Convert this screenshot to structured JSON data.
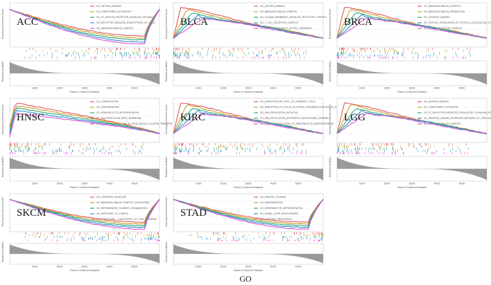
{
  "figure": {
    "footer_label": "GO"
  },
  "axis_text": {
    "es_ylabel": "Running Enrichment Score",
    "rank_ylabel": "Ranked List Metric",
    "rank_xlabel": "Rank in Ordered Dataset"
  },
  "colors": [
    "#e15759",
    "#c9a227",
    "#2aa87a",
    "#2f8fd0",
    "#d957d0"
  ],
  "chart_data": [
    {
      "type": "line",
      "title": "ACC",
      "shape": "valley",
      "ylim": [
        -1,
        0.2
      ],
      "xticks": [
        "10000",
        "20000",
        "30000",
        "40000",
        "50000"
      ],
      "legend": [
        "GO_ANTIGEN_BINDING",
        "GO_COMPLEMENT_ACTIVATION",
        "GO_FC_EPSILON_RECEPTOR_SIGNALING_PATHWAY",
        "GO_RECEPTOR_MEDIATED_ENDOCYTOSIS_OF_VIRUS",
        "GO_IMMUNOGLOBULIN_COMPLEX"
      ]
    },
    {
      "type": "line",
      "title": "BLCA",
      "shape": "peak",
      "ylim": [
        -0.2,
        0.8
      ],
      "xticks": [
        "10000",
        "20000",
        "30000",
        "40000",
        "50000"
      ],
      "legend": [
        "GO_ANTIGEN_BINDING",
        "GO_IMMUNOGLOBULIN_COMPLEX",
        "GO_PLASMA_MEMBRANE_SIGNALING_RECEPTOR_COMPLEX",
        "GO_T_CELL_RECEPTOR_COMPLEX",
        "GO_TRANSCRIPTIONALLY_ACTIVE_CHROMATIN"
      ]
    },
    {
      "type": "line",
      "title": "BRCA",
      "shape": "peak",
      "ylim": [
        -0.2,
        0.8
      ],
      "xticks": [
        "10000",
        "20000",
        "30000",
        "40000",
        "50000"
      ],
      "legend": [
        "GO_IMMUNOGLOBULIN_COMPLEX",
        "GO_IMMUNOGLOBULIN_PRODUCTION",
        "GO_ODORANT_BINDING",
        "GO_POSITIVE_REGULATION_OF_PROTEIN_LOCALIZATION_TO_CELL_SURFACE",
        "GO_T_CELL_RECEPTOR_COMPLEX"
      ]
    },
    {
      "type": "line",
      "title": "HNSC",
      "shape": "decline",
      "ylim": [
        -0.2,
        0.8
      ],
      "xticks": [
        "10000",
        "20000",
        "30000",
        "40000",
        "50000"
      ],
      "legend": [
        "GO_CORNIFICATION",
        "GO_KERATINIZATION",
        "GO_KERATINOCYTE_DIFFERENTIATION",
        "GO_MULTIVESICULAR_BODY_MEMBRANE",
        "GO_PROTEIN_MATURATION_BY_IRON_SULFUR_CLUSTER_TRANSFER"
      ]
    },
    {
      "type": "line",
      "title": "KIRC",
      "shape": "peak",
      "ylim": [
        -0.2,
        0.8
      ],
      "xticks": [
        "10000",
        "20000",
        "30000",
        "40000",
        "50000"
      ],
      "legend": [
        "GO_DISRUPTION_BY_HOST_OF_SYMBIONT_CELLS",
        "GO_DISRUPTION_OF_CELLS_OF_OTHER_ORGANISM_INVOLVED_IN_SYMBIOTIC_INTERACTION",
        "GO_DNA_REPLICATION_INITIATION",
        "GO_DNA_REPLICATION_DEPENDENT_NUCLEOSOME_ASSEMBLY",
        "GO_POSITIVE_REGULATION_OF_KERATINOCYTE_DIFFERENTIATION"
      ]
    },
    {
      "type": "line",
      "title": "LGG",
      "shape": "peak",
      "ylim": [
        -0.2,
        0.8
      ],
      "xticks": [
        "10000",
        "20000",
        "30000",
        "40000",
        "50000"
      ],
      "legend": [
        "GO_ANTIGEN_BINDING",
        "GO_COMPLEMENT_ACTIVATION",
        "GO_FC_RECEPTOR_MEDIATED_STIMULATORY_SIGNALING_PATHWAY",
        "GO_HUMORAL_IMMUNE_RESPONSE_MEDIATED_BY_CIRCULATING_IMMUNOGLOBULIN",
        "GO_IMMUNOGLOBULIN_COMPLEX"
      ]
    },
    {
      "type": "line",
      "title": "SKCM",
      "shape": "valley",
      "ylim": [
        -1,
        0.2
      ],
      "xticks": [
        "10000",
        "20000",
        "30000",
        "40000",
        "50000"
      ],
      "legend": [
        "GO_CORNIFIED_ENVELOPE",
        "GO_IMMUNOGLOBULIN_COMPLEX_CIRCULATING",
        "GO_INTERMEDIATE_FILAMENT_ORGANIZATION",
        "GO_RESPONSE_TO_FUNGUS",
        "GO_STRUCTURAL_CONSTITUENT_OF_SKIN_EPIDERMIS"
      ]
    },
    {
      "type": "line",
      "title": "STAD",
      "shape": "valley",
      "ylim": [
        -1,
        0.2
      ],
      "xticks": [
        "10000",
        "20000",
        "30000",
        "40000",
        "50000"
      ],
      "legend": [
        "GO_KERATIN_FILAMENT",
        "GO_KERATINIZATION",
        "GO_KERATINOCYTE_DIFFERENTIATION",
        "GO_SPINAL_CORD_DEVELOPMENT",
        "GO_ZYMOGEN_PROCESSING"
      ]
    }
  ]
}
